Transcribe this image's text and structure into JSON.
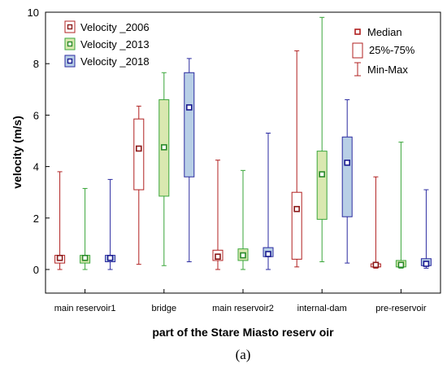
{
  "chart_data": {
    "type": "box",
    "xlabel": "part of the Stare Miasto reserv oir",
    "ylabel": "velocity (m/s)",
    "panel_label": "(a)",
    "ylim": [
      -0.9,
      10
    ],
    "yticks": [
      "0",
      "2",
      "4",
      "6",
      "8",
      "10"
    ],
    "ytick_values": [
      0,
      2,
      4,
      6,
      8,
      10
    ],
    "categories": [
      "main reservoir1",
      "bridge",
      "main reservoir2",
      "internal-dam",
      "pre-reservoir"
    ],
    "series": [
      {
        "name": "Velocity _2006",
        "stroke": "#b02020",
        "fill": "#ffffff",
        "marker": "#8b1a1a",
        "stats": [
          {
            "min": 0.0,
            "q1": 0.25,
            "median": 0.45,
            "q3": 0.55,
            "max": 3.8
          },
          {
            "min": 0.2,
            "q1": 3.1,
            "median": 4.7,
            "q3": 5.85,
            "max": 6.35
          },
          {
            "min": 0.0,
            "q1": 0.35,
            "median": 0.5,
            "q3": 0.75,
            "max": 4.25
          },
          {
            "min": 0.1,
            "q1": 0.4,
            "median": 2.35,
            "q3": 3.0,
            "max": 8.5
          },
          {
            "min": 0.05,
            "q1": 0.1,
            "median": 0.18,
            "q3": 0.22,
            "max": 3.6
          }
        ]
      },
      {
        "name": "Velocity _2013",
        "stroke": "#3aa63a",
        "fill": "#d9e8b0",
        "marker": "#2a8a2a",
        "stats": [
          {
            "min": 0.0,
            "q1": 0.25,
            "median": 0.45,
            "q3": 0.55,
            "max": 3.15
          },
          {
            "min": 0.15,
            "q1": 2.85,
            "median": 4.75,
            "q3": 6.6,
            "max": 7.65
          },
          {
            "min": 0.0,
            "q1": 0.35,
            "median": 0.55,
            "q3": 0.8,
            "max": 3.85
          },
          {
            "min": 0.3,
            "q1": 1.95,
            "median": 3.7,
            "q3": 4.6,
            "max": 9.8
          },
          {
            "min": 0.05,
            "q1": 0.1,
            "median": 0.18,
            "q3": 0.35,
            "max": 4.95
          }
        ]
      },
      {
        "name": "Velocity _2018",
        "stroke": "#2a2aa0",
        "fill": "#b8cfe6",
        "marker": "#1a1a90",
        "stats": [
          {
            "min": 0.0,
            "q1": 0.3,
            "median": 0.45,
            "q3": 0.55,
            "max": 3.5
          },
          {
            "min": 0.3,
            "q1": 3.6,
            "median": 6.3,
            "q3": 7.65,
            "max": 8.2
          },
          {
            "min": 0.0,
            "q1": 0.5,
            "median": 0.6,
            "q3": 0.85,
            "max": 5.3
          },
          {
            "min": 0.25,
            "q1": 2.05,
            "median": 4.15,
            "q3": 5.15,
            "max": 6.6
          },
          {
            "min": 0.05,
            "q1": 0.15,
            "median": 0.22,
            "q3": 0.42,
            "max": 3.1
          }
        ]
      }
    ],
    "stat_legend": {
      "median": "Median",
      "box": "25%-75%",
      "whisker": "Min-Max",
      "stroke": "#b02020"
    },
    "grid": false,
    "legend_position": "top"
  }
}
